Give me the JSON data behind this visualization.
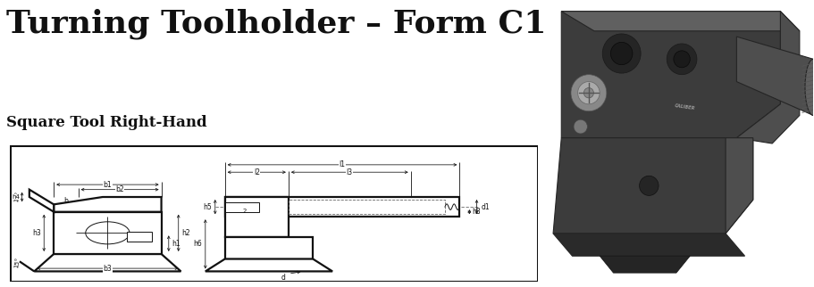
{
  "title": "Turning Toolholder – Form C1",
  "subtitle": "Square Tool Right-Hand",
  "title_fontsize": 26,
  "subtitle_fontsize": 12,
  "title_color": "#111111",
  "bg_color": "#ffffff",
  "black": "#111111",
  "gray": "#666666",
  "dark_photo": "#3c3c3c",
  "mid_photo": "#4e4e4e",
  "light_photo": "#606060",
  "very_dark": "#252525",
  "angle_labels": [
    "15°",
    "15°"
  ],
  "dim_labels": [
    "b1",
    "b2",
    "b",
    "h4",
    "h3",
    "h1",
    "h2",
    "b3",
    "l1",
    "l2",
    "l3",
    "h5",
    "h6",
    "h8",
    "d1",
    "d"
  ],
  "lw_thick": 1.6,
  "lw_thin": 0.7,
  "lw_dim": 0.6
}
